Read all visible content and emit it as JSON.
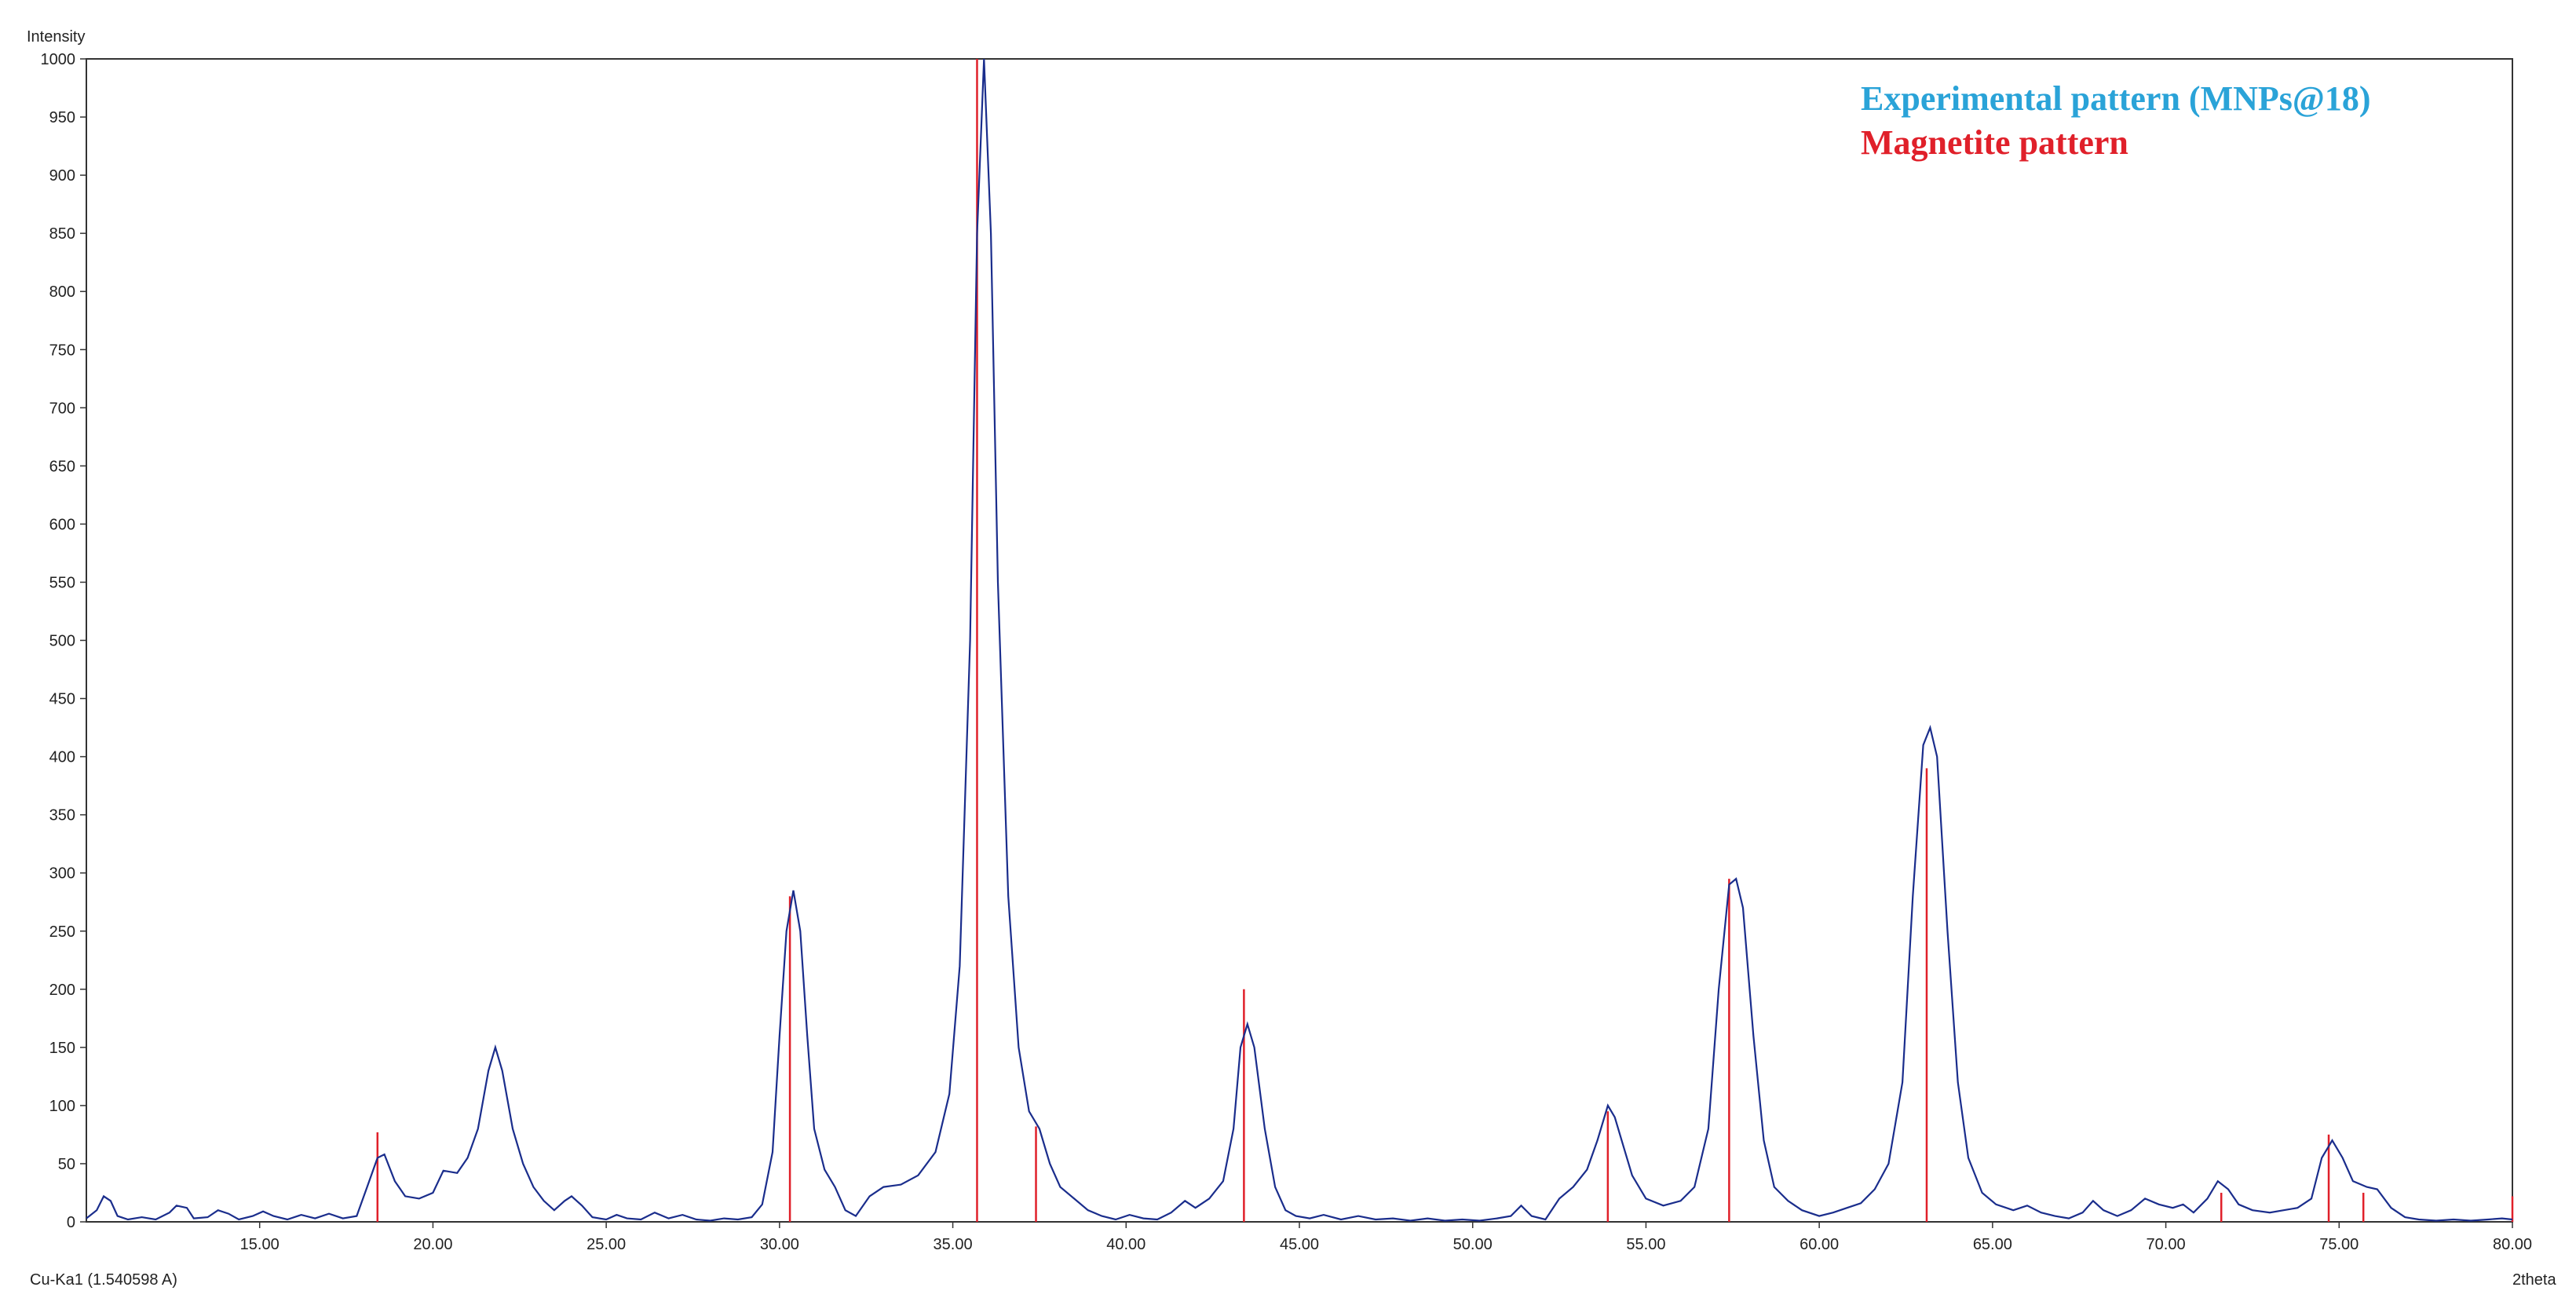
{
  "chart_data": {
    "type": "line",
    "ylabel": "Intensity",
    "xlabel": "2theta",
    "wavelength_label": "Cu-Ka1 (1.540598 A)",
    "xlim": [
      10,
      80
    ],
    "ylim": [
      0,
      1000
    ],
    "x_ticks": [
      "15.00",
      "20.00",
      "25.00",
      "30.00",
      "35.00",
      "40.00",
      "45.00",
      "50.00",
      "55.00",
      "60.00",
      "65.00",
      "70.00",
      "75.00",
      "80.00"
    ],
    "y_ticks": [
      "0",
      "50",
      "100",
      "150",
      "200",
      "250",
      "300",
      "350",
      "400",
      "450",
      "500",
      "550",
      "600",
      "650",
      "700",
      "750",
      "800",
      "850",
      "900",
      "950",
      "1000"
    ],
    "grid": false,
    "legend": [
      {
        "label": "Experimental pattern (MNPs@18)",
        "color": "#2aa3d8"
      },
      {
        "label": "Magnetite pattern",
        "color": "#e0202a"
      }
    ],
    "series": [
      {
        "kind": "line",
        "color": "#1a2d8c",
        "points": [
          [
            10.0,
            3
          ],
          [
            10.3,
            10
          ],
          [
            10.5,
            22
          ],
          [
            10.7,
            18
          ],
          [
            10.9,
            5
          ],
          [
            11.2,
            2
          ],
          [
            11.6,
            4
          ],
          [
            12.0,
            2
          ],
          [
            12.4,
            8
          ],
          [
            12.6,
            14
          ],
          [
            12.9,
            12
          ],
          [
            13.1,
            3
          ],
          [
            13.5,
            4
          ],
          [
            13.8,
            10
          ],
          [
            14.1,
            7
          ],
          [
            14.4,
            2
          ],
          [
            14.8,
            5
          ],
          [
            15.1,
            9
          ],
          [
            15.4,
            5
          ],
          [
            15.8,
            2
          ],
          [
            16.2,
            6
          ],
          [
            16.6,
            3
          ],
          [
            17.0,
            7
          ],
          [
            17.4,
            3
          ],
          [
            17.8,
            5
          ],
          [
            18.1,
            30
          ],
          [
            18.4,
            55
          ],
          [
            18.6,
            58
          ],
          [
            18.9,
            35
          ],
          [
            19.2,
            22
          ],
          [
            19.6,
            20
          ],
          [
            20.0,
            25
          ],
          [
            20.3,
            44
          ],
          [
            20.7,
            42
          ],
          [
            21.0,
            55
          ],
          [
            21.3,
            80
          ],
          [
            21.6,
            130
          ],
          [
            21.8,
            150
          ],
          [
            22.0,
            130
          ],
          [
            22.3,
            80
          ],
          [
            22.6,
            50
          ],
          [
            22.9,
            30
          ],
          [
            23.2,
            18
          ],
          [
            23.5,
            10
          ],
          [
            23.8,
            18
          ],
          [
            24.0,
            22
          ],
          [
            24.3,
            14
          ],
          [
            24.6,
            4
          ],
          [
            25.0,
            2
          ],
          [
            25.3,
            6
          ],
          [
            25.6,
            3
          ],
          [
            26.0,
            2
          ],
          [
            26.4,
            8
          ],
          [
            26.8,
            3
          ],
          [
            27.2,
            6
          ],
          [
            27.6,
            2
          ],
          [
            28.0,
            1
          ],
          [
            28.4,
            3
          ],
          [
            28.8,
            2
          ],
          [
            29.2,
            4
          ],
          [
            29.5,
            15
          ],
          [
            29.8,
            60
          ],
          [
            30.0,
            160
          ],
          [
            30.2,
            250
          ],
          [
            30.4,
            285
          ],
          [
            30.6,
            250
          ],
          [
            30.8,
            160
          ],
          [
            31.0,
            80
          ],
          [
            31.3,
            45
          ],
          [
            31.6,
            30
          ],
          [
            31.9,
            10
          ],
          [
            32.2,
            5
          ],
          [
            32.6,
            22
          ],
          [
            33.0,
            30
          ],
          [
            33.5,
            32
          ],
          [
            34.0,
            40
          ],
          [
            34.5,
            60
          ],
          [
            34.9,
            110
          ],
          [
            35.2,
            220
          ],
          [
            35.5,
            500
          ],
          [
            35.7,
            850
          ],
          [
            35.9,
            1000
          ],
          [
            36.1,
            850
          ],
          [
            36.3,
            550
          ],
          [
            36.6,
            280
          ],
          [
            36.9,
            150
          ],
          [
            37.2,
            95
          ],
          [
            37.5,
            80
          ],
          [
            37.8,
            50
          ],
          [
            38.1,
            30
          ],
          [
            38.5,
            20
          ],
          [
            38.9,
            10
          ],
          [
            39.3,
            5
          ],
          [
            39.7,
            2
          ],
          [
            40.1,
            6
          ],
          [
            40.5,
            3
          ],
          [
            40.9,
            2
          ],
          [
            41.3,
            8
          ],
          [
            41.7,
            18
          ],
          [
            42.0,
            12
          ],
          [
            42.4,
            20
          ],
          [
            42.8,
            35
          ],
          [
            43.1,
            80
          ],
          [
            43.3,
            150
          ],
          [
            43.5,
            170
          ],
          [
            43.7,
            150
          ],
          [
            44.0,
            80
          ],
          [
            44.3,
            30
          ],
          [
            44.6,
            10
          ],
          [
            44.9,
            5
          ],
          [
            45.3,
            3
          ],
          [
            45.7,
            6
          ],
          [
            46.2,
            2
          ],
          [
            46.7,
            5
          ],
          [
            47.2,
            2
          ],
          [
            47.7,
            3
          ],
          [
            48.2,
            1
          ],
          [
            48.7,
            3
          ],
          [
            49.2,
            1
          ],
          [
            49.7,
            2
          ],
          [
            50.2,
            1
          ],
          [
            50.7,
            3
          ],
          [
            51.1,
            5
          ],
          [
            51.4,
            14
          ],
          [
            51.7,
            5
          ],
          [
            52.1,
            2
          ],
          [
            52.5,
            20
          ],
          [
            52.9,
            30
          ],
          [
            53.3,
            45
          ],
          [
            53.6,
            70
          ],
          [
            53.9,
            100
          ],
          [
            54.1,
            90
          ],
          [
            54.3,
            70
          ],
          [
            54.6,
            40
          ],
          [
            55.0,
            20
          ],
          [
            55.5,
            14
          ],
          [
            56.0,
            18
          ],
          [
            56.4,
            30
          ],
          [
            56.8,
            80
          ],
          [
            57.1,
            200
          ],
          [
            57.4,
            290
          ],
          [
            57.6,
            295
          ],
          [
            57.8,
            270
          ],
          [
            58.1,
            160
          ],
          [
            58.4,
            70
          ],
          [
            58.7,
            30
          ],
          [
            59.1,
            18
          ],
          [
            59.5,
            10
          ],
          [
            60.0,
            5
          ],
          [
            60.4,
            8
          ],
          [
            60.8,
            12
          ],
          [
            61.2,
            16
          ],
          [
            61.6,
            28
          ],
          [
            62.0,
            50
          ],
          [
            62.4,
            120
          ],
          [
            62.7,
            280
          ],
          [
            63.0,
            410
          ],
          [
            63.2,
            425
          ],
          [
            63.4,
            400
          ],
          [
            63.7,
            250
          ],
          [
            64.0,
            120
          ],
          [
            64.3,
            55
          ],
          [
            64.7,
            25
          ],
          [
            65.1,
            15
          ],
          [
            65.6,
            10
          ],
          [
            66.0,
            14
          ],
          [
            66.4,
            8
          ],
          [
            66.8,
            5
          ],
          [
            67.2,
            3
          ],
          [
            67.6,
            8
          ],
          [
            67.9,
            18
          ],
          [
            68.2,
            10
          ],
          [
            68.6,
            5
          ],
          [
            69.0,
            10
          ],
          [
            69.4,
            20
          ],
          [
            69.8,
            15
          ],
          [
            70.2,
            12
          ],
          [
            70.5,
            15
          ],
          [
            70.8,
            8
          ],
          [
            71.2,
            20
          ],
          [
            71.5,
            35
          ],
          [
            71.8,
            28
          ],
          [
            72.1,
            15
          ],
          [
            72.5,
            10
          ],
          [
            73.0,
            8
          ],
          [
            73.4,
            10
          ],
          [
            73.8,
            12
          ],
          [
            74.2,
            20
          ],
          [
            74.5,
            55
          ],
          [
            74.8,
            70
          ],
          [
            75.1,
            55
          ],
          [
            75.4,
            35
          ],
          [
            75.8,
            30
          ],
          [
            76.1,
            28
          ],
          [
            76.5,
            12
          ],
          [
            76.9,
            4
          ],
          [
            77.3,
            2
          ],
          [
            77.8,
            1
          ],
          [
            78.3,
            2
          ],
          [
            78.8,
            1
          ],
          [
            79.3,
            2
          ],
          [
            79.7,
            3
          ],
          [
            80.0,
            2
          ]
        ]
      },
      {
        "kind": "sticks",
        "color": "#e0202a",
        "points": [
          [
            18.4,
            77
          ],
          [
            30.3,
            280
          ],
          [
            35.7,
            1000
          ],
          [
            37.4,
            82
          ],
          [
            43.4,
            200
          ],
          [
            53.9,
            95
          ],
          [
            57.4,
            295
          ],
          [
            63.1,
            390
          ],
          [
            71.6,
            25
          ],
          [
            74.7,
            75
          ],
          [
            75.7,
            25
          ],
          [
            80.0,
            22
          ]
        ]
      }
    ]
  }
}
